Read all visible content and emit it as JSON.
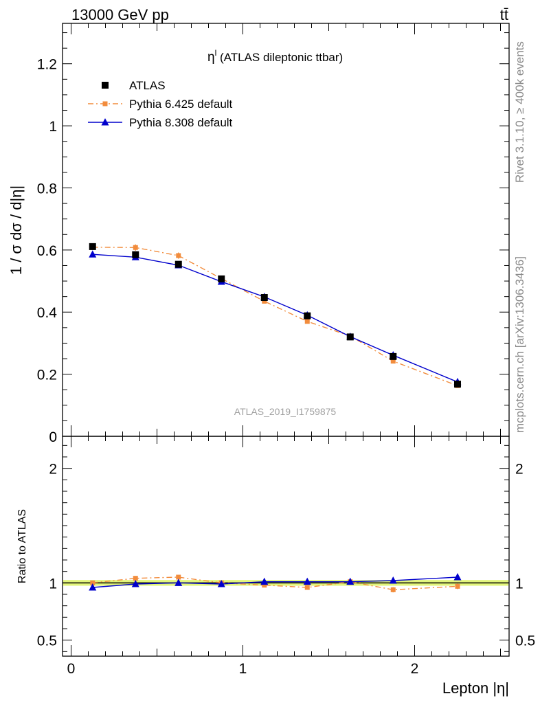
{
  "header": {
    "energy": "13000 GeV pp",
    "process": "tt̄",
    "rivet": "Rivet 3.1.10, ≥ 400k events",
    "mcplots": "mcplots.cern.ch [arXiv:1306.3436]"
  },
  "plot": {
    "title_sym": "η",
    "title_sup": "l",
    "title_rest": " (ATLAS dileptonic ttbar)",
    "analysis": "ATLAS_2019_I1759875"
  },
  "chart_data": [
    {
      "type": "scatter",
      "title": "ηl (ATLAS dileptonic ttbar)",
      "ylabel": "1 / σ  dσ / d|η|",
      "xlabel": "Lepton |η|",
      "xlim": [
        -0.05,
        2.55
      ],
      "ylim": [
        0,
        1.33
      ],
      "y_ticks": [
        0,
        0.2,
        0.4,
        0.6,
        0.8,
        1,
        1.2
      ],
      "y_tick_labels": [
        "0",
        "0.2",
        "0.4",
        "0.6",
        "0.8",
        "1",
        "1.2"
      ],
      "x_ticks": [
        0,
        1,
        2
      ],
      "x_tick_labels": [
        "0",
        "1",
        "2"
      ],
      "x": [
        0.125,
        0.375,
        0.625,
        0.875,
        1.125,
        1.375,
        1.625,
        1.875,
        2.25
      ],
      "series": [
        {
          "name": "ATLAS",
          "color": "#000000",
          "marker": "square",
          "values": [
            0.611,
            0.585,
            0.554,
            0.507,
            0.447,
            0.388,
            0.32,
            0.257,
            0.168
          ],
          "errors": [
            0.008,
            0.008,
            0.007,
            0.007,
            0.006,
            0.006,
            0.005,
            0.005,
            0.005
          ]
        },
        {
          "name": "Pythia 6.425 default",
          "color": "#f28c3c",
          "marker": "square-small",
          "dash": "8,4,2,4",
          "values": [
            0.609,
            0.608,
            0.582,
            0.508,
            0.435,
            0.37,
            0.323,
            0.242,
            0.163
          ],
          "errors": [
            0.009,
            0.01,
            0.01,
            0.008,
            0.007,
            0.006,
            0.006,
            0.006,
            0.004
          ]
        },
        {
          "name": "Pythia 8.308 default",
          "color": "#0000cc",
          "marker": "triangle",
          "values": [
            0.586,
            0.577,
            0.551,
            0.498,
            0.449,
            0.39,
            0.321,
            0.261,
            0.175
          ],
          "errors": [
            0.003,
            0.003,
            0.003,
            0.003,
            0.003,
            0.003,
            0.003,
            0.003,
            0.003
          ]
        }
      ]
    },
    {
      "type": "scatter",
      "ylabel": "Ratio to ATLAS",
      "xlabel": "Lepton |η|",
      "xlim": [
        -0.05,
        2.55
      ],
      "ylim": [
        0.36,
        2.28
      ],
      "y_ticks": [
        0.5,
        1,
        2
      ],
      "y_tick_labels": [
        "0.5",
        "1",
        "2"
      ],
      "band": {
        "low": 0.975,
        "high": 1.025,
        "color": "#e2f57a"
      },
      "x": [
        0.125,
        0.375,
        0.625,
        0.875,
        1.125,
        1.375,
        1.625,
        1.875,
        2.25
      ],
      "series": [
        {
          "name": "Pythia 6.425 default",
          "color": "#f28c3c",
          "values": [
            1.0,
            1.04,
            1.05,
            1.0,
            0.98,
            0.96,
            1.01,
            0.94,
            0.97
          ],
          "errors": [
            0.015,
            0.017,
            0.018,
            0.016,
            0.015,
            0.016,
            0.018,
            0.023,
            0.024
          ]
        },
        {
          "name": "Pythia 8.308 default",
          "color": "#0000cc",
          "values": [
            0.96,
            0.99,
            1.0,
            0.99,
            1.01,
            1.01,
            1.01,
            1.02,
            1.05
          ],
          "errors": [
            0.006,
            0.006,
            0.006,
            0.006,
            0.007,
            0.008,
            0.009,
            0.012,
            0.018
          ]
        }
      ]
    }
  ]
}
